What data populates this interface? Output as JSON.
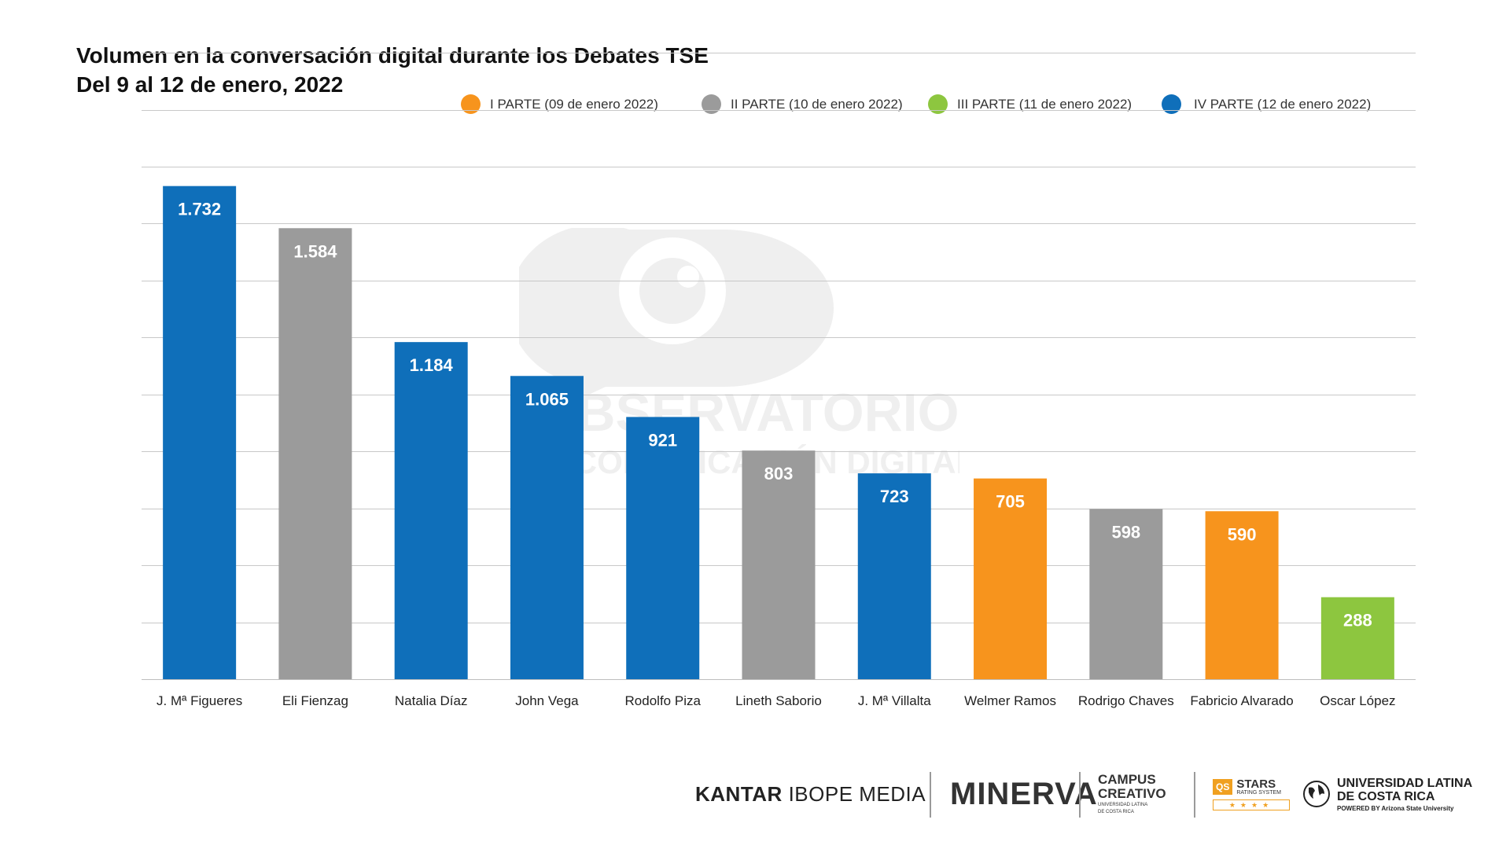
{
  "title_line1": "Volumen en la conversación digital durante los Debates TSE",
  "title_line2": "Del 9 al 12 de enero, 2022",
  "legend": [
    {
      "label": "I PARTE (09 de enero 2022)",
      "color": "#F7941D"
    },
    {
      "label": "II PARTE (10 de enero 2022)",
      "color": "#9B9B9B"
    },
    {
      "label": "III PARTE (11 de enero 2022)",
      "color": "#8DC63F"
    },
    {
      "label": "IV PARTE (12 de enero 2022)",
      "color": "#0F6FBA"
    }
  ],
  "chart_data": {
    "type": "bar",
    "categories": [
      "J. Mª Figueres",
      "Eli Fienzag",
      "Natalia Díaz",
      "John Vega",
      "Rodolfo Piza",
      "Lineth Saborio",
      "J. Mª Villalta",
      "Welmer Ramos",
      "Rodrigo Chaves",
      "Fabricio Alvarado",
      "Oscar López"
    ],
    "values": [
      1732,
      1584,
      1184,
      1065,
      921,
      803,
      723,
      705,
      598,
      590,
      288
    ],
    "value_labels": [
      "1.732",
      "1.584",
      "1.184",
      "1.065",
      "921",
      "803",
      "723",
      "705",
      "598",
      "590",
      "288"
    ],
    "debate_part": [
      "IV PARTE (12 de enero 2022)",
      "II PARTE (10 de enero 2022)",
      "IV PARTE (12 de enero 2022)",
      "IV PARTE (12 de enero 2022)",
      "IV PARTE (12 de enero 2022)",
      "II PARTE (10 de enero 2022)",
      "IV PARTE (12 de enero 2022)",
      "I PARTE (09 de enero 2022)",
      "II PARTE (10 de enero 2022)",
      "I PARTE (09 de enero 2022)",
      "III PARTE (11 de enero 2022)"
    ],
    "bar_colors": [
      "#0F6FBA",
      "#9B9B9B",
      "#0F6FBA",
      "#0F6FBA",
      "#0F6FBA",
      "#9B9B9B",
      "#0F6FBA",
      "#F7941D",
      "#9B9B9B",
      "#F7941D",
      "#8DC63F"
    ],
    "ylim": [
      0,
      2200
    ],
    "grid": true,
    "legend_position": "top-right",
    "xlabel": "",
    "ylabel": ""
  },
  "watermark": {
    "line1": "OBSERVATORIO",
    "line2": "DE COMUNICACIÓN DIGITAL"
  },
  "footer": {
    "kantar_bold": "KANTAR",
    "kantar_rest": "IBOPE MEDIA",
    "minerva": "MINERVA",
    "campus_line1": "CAMPUS",
    "campus_line2": "CREATIVO",
    "campus_sub1": "UNIVERSIDAD LATINA",
    "campus_sub2": "DE COSTA RICA",
    "qs_badge": "QS",
    "qs_stars": "STARS",
    "qs_rating": "RATING SYSTEM",
    "ulatina_line1": "UNIVERSIDAD LATINA",
    "ulatina_line2": "DE COSTA RICA",
    "ulatina_powered": "POWERED BY Arizona State University"
  }
}
